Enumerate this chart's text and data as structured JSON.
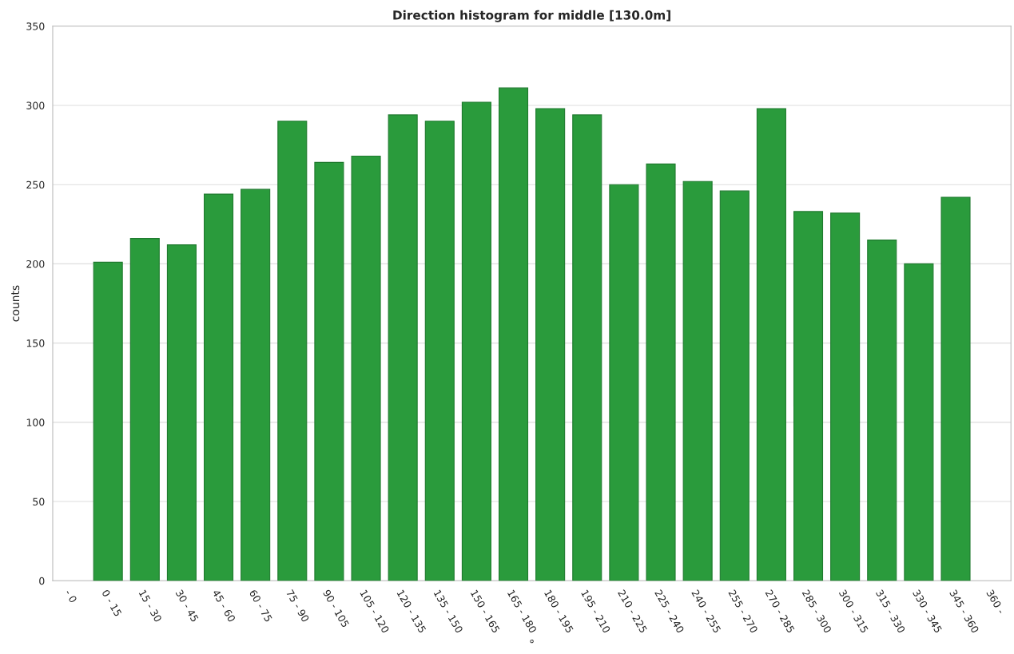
{
  "chart_data": {
    "type": "bar",
    "title": "Direction histogram for middle [130.0m]",
    "xlabel": "°",
    "ylabel": "counts",
    "categories": [
      "- 0",
      "0 - 15",
      "15 - 30",
      "30 - 45",
      "45 - 60",
      "60 - 75",
      "75 - 90",
      "90 - 105",
      "105 - 120",
      "120 - 135",
      "135 - 150",
      "150 - 165",
      "165 - 180",
      "180 - 195",
      "195 - 210",
      "210 - 225",
      "225 - 240",
      "240 - 255",
      "255 - 270",
      "270 - 285",
      "285 - 300",
      "300 - 315",
      "315 - 330",
      "330 - 345",
      "345 - 360",
      "360 -"
    ],
    "values": [
      null,
      201,
      216,
      212,
      244,
      247,
      290,
      264,
      268,
      294,
      290,
      302,
      311,
      298,
      294,
      250,
      263,
      252,
      246,
      298,
      233,
      232,
      215,
      200,
      242,
      null
    ],
    "color": "#2a9b3c",
    "ylim": [
      0,
      350
    ],
    "yticks": [
      0,
      50,
      100,
      150,
      200,
      250,
      300,
      350
    ],
    "grid": "y",
    "legend": false
  }
}
